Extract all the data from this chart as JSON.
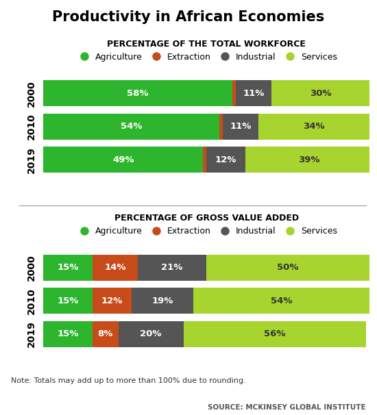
{
  "title": "Productivity in African Economies",
  "chart1_subtitle": "PERCENTAGE OF THE TOTAL WORKFORCE",
  "chart2_subtitle": "PERCENTAGE OF GROSS VALUE ADDED",
  "years": [
    "2000",
    "2010",
    "2019"
  ],
  "workforce": {
    "Agriculture": [
      58,
      54,
      49
    ],
    "Extraction": [
      1,
      1,
      1
    ],
    "Industrial": [
      11,
      11,
      12
    ],
    "Services": [
      30,
      34,
      39
    ]
  },
  "gva": {
    "Agriculture": [
      15,
      15,
      15
    ],
    "Extraction": [
      14,
      12,
      8
    ],
    "Industrial": [
      21,
      19,
      20
    ],
    "Services": [
      50,
      54,
      56
    ]
  },
  "colors": {
    "Agriculture": "#2db52d",
    "Extraction": "#c84b1a",
    "Industrial": "#555555",
    "Services": "#a8d430"
  },
  "note": "Note: Totals may add up to more than 100% due to rounding.",
  "source": "SOURCE: MCKINSEY GLOBAL INSTITUTE",
  "background_color": "#ffffff"
}
